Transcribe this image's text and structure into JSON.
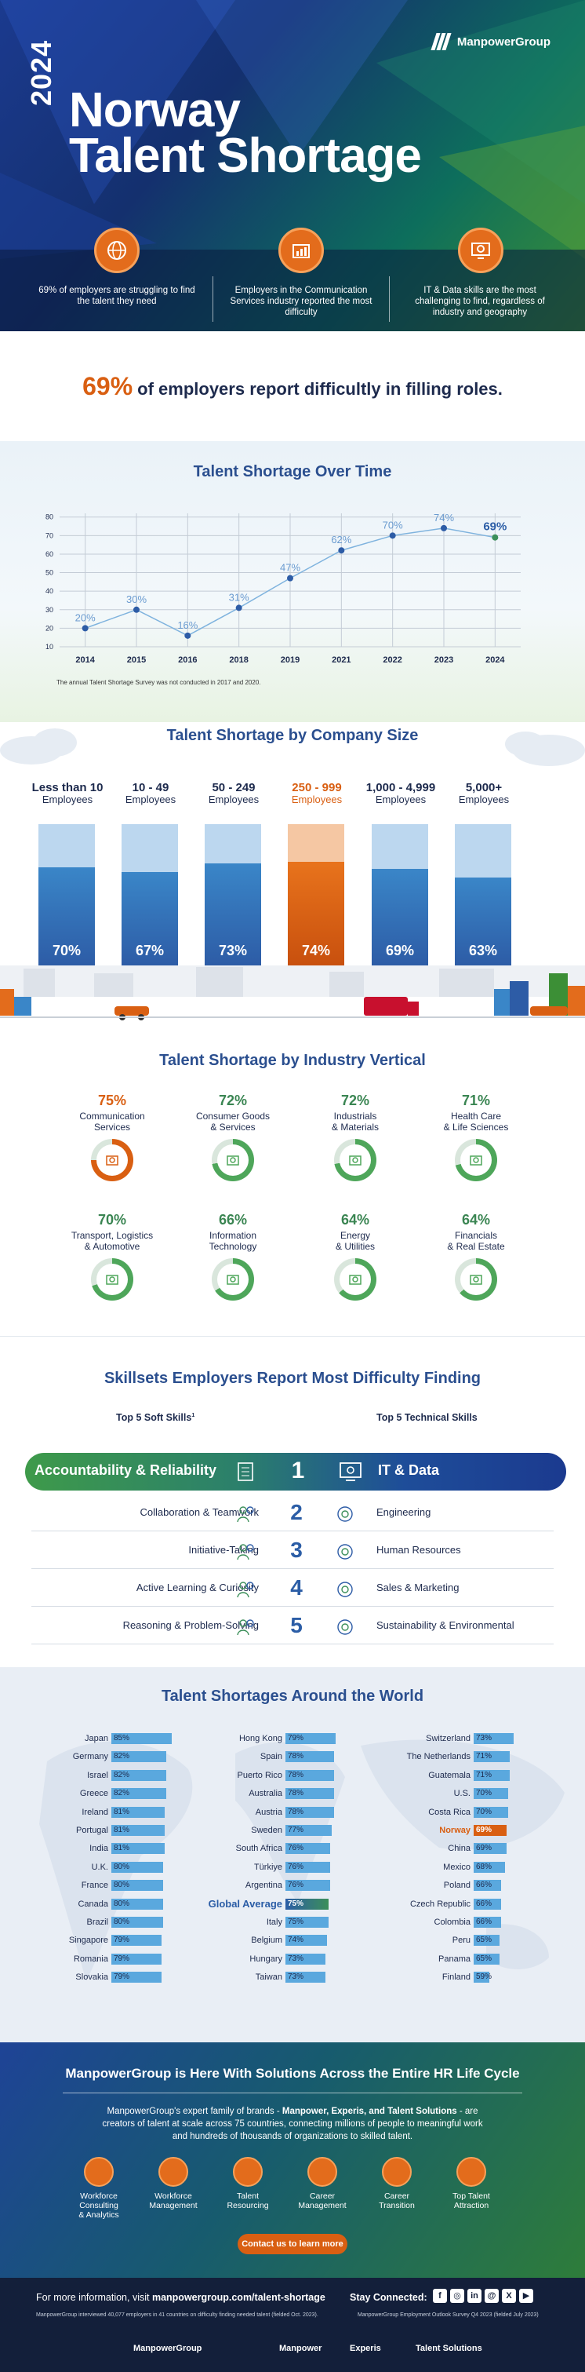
{
  "brand": "ManpowerGroup",
  "hero": {
    "year": "2024",
    "title_line1": "Norway",
    "title_line2": "Talent Shortage",
    "stats": [
      {
        "icon": "globe-icon",
        "text": "69% of employers are struggling to find the talent they need"
      },
      {
        "icon": "chart-icon",
        "text": "Employers in the Communication Services industry reported the most difficulty"
      },
      {
        "icon": "gear-monitor-icon",
        "text": "IT & Data skills are the most challenging to find, regardless of industry and geography"
      }
    ]
  },
  "headline": {
    "pct": "69%",
    "text": "of employers report difficultly in filling roles."
  },
  "time": {
    "title": "Talent Shortage Over Time",
    "note": "The annual Talent Shortage Survey was not conducted in 2017 and 2020.",
    "chart_data": {
      "type": "line",
      "x": [
        "2014",
        "2015",
        "2016",
        "2018",
        "2019",
        "2021",
        "2022",
        "2023",
        "2024"
      ],
      "series": [
        {
          "values": [
            20,
            30,
            16,
            31,
            47,
            62,
            70,
            74,
            69
          ]
        }
      ],
      "labels": [
        "20%",
        "30%",
        "16%",
        "31%",
        "47%",
        "62%",
        "70%",
        "74%",
        "69%"
      ],
      "yticks": [
        10,
        20,
        30,
        40,
        50,
        60,
        70,
        80
      ],
      "ylim": [
        10,
        82
      ],
      "grid": true
    }
  },
  "size": {
    "title": "Talent Shortage by Company Size",
    "chart_data": {
      "type": "bar",
      "categories": [
        "Less than 10",
        "10 - 49",
        "50 - 249",
        "250 - 999",
        "1,000 - 4,999",
        "5,000+"
      ],
      "sub": "Employees",
      "values": [
        70,
        67,
        73,
        74,
        69,
        63
      ],
      "labels": [
        "70%",
        "67%",
        "73%",
        "74%",
        "69%",
        "63%"
      ],
      "highlight": 3,
      "colors": {
        "bar": "#2f6db6",
        "highlight": "#d95f12"
      }
    }
  },
  "industry": {
    "title": "Talent Shortage by Industry Vertical",
    "items": [
      {
        "pct": "75%",
        "value": 75,
        "name1": "Communication",
        "name2": "Services",
        "highlight": true
      },
      {
        "pct": "72%",
        "value": 72,
        "name1": "Consumer Goods",
        "name2": "& Services"
      },
      {
        "pct": "72%",
        "value": 72,
        "name1": "Industrials",
        "name2": "& Materials"
      },
      {
        "pct": "71%",
        "value": 71,
        "name1": "Health Care",
        "name2": "& Life Sciences"
      },
      {
        "pct": "70%",
        "value": 70,
        "name1": "Transport, Logistics",
        "name2": "& Automotive"
      },
      {
        "pct": "66%",
        "value": 66,
        "name1": "Information",
        "name2": "Technology"
      },
      {
        "pct": "64%",
        "value": 64,
        "name1": "Energy",
        "name2": "& Utilities"
      },
      {
        "pct": "64%",
        "value": 64,
        "name1": "Financials",
        "name2": "& Real Estate"
      }
    ]
  },
  "skills": {
    "title": "Skillsets Employers Report Most Difficulty Finding",
    "soft_head": "Top 5 Soft Skills",
    "soft_sup": "1",
    "tech_head": "Top 5 Technical Skills",
    "rows": [
      {
        "n": "1",
        "soft": "Accountability & Reliability",
        "tech": "IT & Data"
      },
      {
        "n": "2",
        "soft": "Collaboration & Teamwork",
        "tech": "Engineering"
      },
      {
        "n": "3",
        "soft": "Initiative-Taking",
        "tech": "Human Resources"
      },
      {
        "n": "4",
        "soft": "Active Learning & Curiosity",
        "tech": "Sales & Marketing"
      },
      {
        "n": "5",
        "soft": "Reasoning & Problem-Solving",
        "tech": "Sustainability & Environmental"
      }
    ]
  },
  "world": {
    "title": "Talent Shortages Around the World",
    "col1": [
      [
        "Japan",
        "85%"
      ],
      [
        "Germany",
        "82%"
      ],
      [
        "Israel",
        "82%"
      ],
      [
        "Greece",
        "82%"
      ],
      [
        "Ireland",
        "81%"
      ],
      [
        "Portugal",
        "81%"
      ],
      [
        "India",
        "81%"
      ],
      [
        "U.K.",
        "80%"
      ],
      [
        "France",
        "80%"
      ],
      [
        "Canada",
        "80%"
      ],
      [
        "Brazil",
        "80%"
      ],
      [
        "Singapore",
        "79%"
      ],
      [
        "Romania",
        "79%"
      ],
      [
        "Slovakia",
        "79%"
      ]
    ],
    "col2": [
      [
        "Hong Kong",
        "79%"
      ],
      [
        "Spain",
        "78%"
      ],
      [
        "Puerto Rico",
        "78%"
      ],
      [
        "Australia",
        "78%"
      ],
      [
        "Austria",
        "78%"
      ],
      [
        "Sweden",
        "77%"
      ],
      [
        "South Africa",
        "76%"
      ],
      [
        "Türkiye",
        "76%"
      ],
      [
        "Argentina",
        "76%"
      ],
      [
        "Global Average",
        "75%"
      ],
      [
        "Italy",
        "75%"
      ],
      [
        "Belgium",
        "74%"
      ],
      [
        "Hungary",
        "73%"
      ],
      [
        "Taiwan",
        "73%"
      ]
    ],
    "col3": [
      [
        "Switzerland",
        "73%"
      ],
      [
        "The Netherlands",
        "71%"
      ],
      [
        "Guatemala",
        "71%"
      ],
      [
        "U.S.",
        "70%"
      ],
      [
        "Costa Rica",
        "70%"
      ],
      [
        "Norway",
        "69%"
      ],
      [
        "China",
        "69%"
      ],
      [
        "Mexico",
        "68%"
      ],
      [
        "Poland",
        "66%"
      ],
      [
        "Czech Republic",
        "66%"
      ],
      [
        "Colombia",
        "66%"
      ],
      [
        "Peru",
        "65%"
      ],
      [
        "Panama",
        "65%"
      ],
      [
        "Finland",
        "59%"
      ]
    ]
  },
  "cta": {
    "title": "ManpowerGroup is Here With Solutions Across the Entire HR Life Cycle",
    "text_a": "ManpowerGroup's expert family of brands - ",
    "text_b": "Manpower, Experis, and Talent Solutions",
    "text_c": " - are creators of talent at scale across 75 countries, connecting millions of people to meaningful work and hundreds of thousands of organizations to skilled talent.",
    "solutions": [
      [
        "Workforce Consulting",
        "& Analytics"
      ],
      [
        "Workforce",
        "Management"
      ],
      [
        "Talent",
        "Resourcing"
      ],
      [
        "Career",
        "Management"
      ],
      [
        "Career",
        "Transition"
      ],
      [
        "Top Talent",
        "Attraction"
      ]
    ],
    "button": "Contact us to learn more"
  },
  "footer": {
    "visit_a": "For more information, visit ",
    "visit_b": "manpowergroup.com/talent-shortage",
    "stay": "Stay Connected:",
    "social": [
      "f",
      "◎",
      "in",
      "@",
      "X",
      "▶"
    ],
    "small_left": "ManpowerGroup interviewed 40,077 employers in 41 countries on difficulty finding needed talent (fielded Oct. 2023).",
    "small_right": "ManpowerGroup Employment Outlook Survey Q4 2023 (fielded July 2023)",
    "brands": [
      "ManpowerGroup",
      "Manpower",
      "Experis",
      "Talent Solutions"
    ]
  }
}
